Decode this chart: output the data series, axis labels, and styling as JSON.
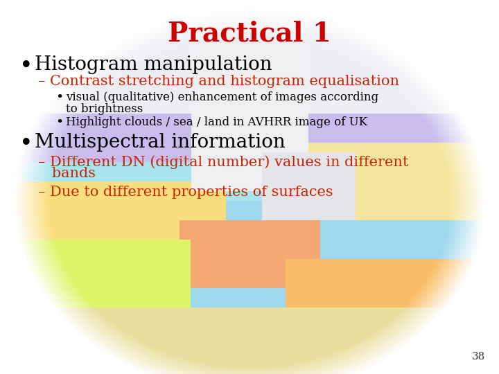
{
  "title": "Practical 1",
  "title_color": "#cc0000",
  "title_fontsize": 28,
  "background_color": "#ffffff",
  "slide_number": "38",
  "bullet1": "Histogram manipulation",
  "bullet1_color": "#000000",
  "bullet1_fontsize": 20,
  "sub_bullet1": "– Contrast stretching and histogram equalisation",
  "sub_bullet1_color": "#cc2200",
  "sub_bullet1_fontsize": 15,
  "sub_sub_bullet1_line1": "visual (qualitative) enhancement of images according",
  "sub_sub_bullet1_line2": "to brightness",
  "sub_sub_bullet_color": "#000000",
  "sub_sub_bullet_fontsize": 12,
  "sub_sub_bullet2": "Highlight clouds / sea / land in AVHRR image of UK",
  "bullet2": "Multispectral information",
  "bullet2_color": "#000000",
  "bullet2_fontsize": 20,
  "sub_bullet2_line1": "– Different DN (digital number) values in different",
  "sub_bullet2_line2": "   bands",
  "sub_bullet2_color": "#cc2200",
  "sub_bullet2_fontsize": 15,
  "sub_bullet3": "– Due to different properties of surfaces",
  "sub_bullet3_color": "#cc2200",
  "sub_bullet3_fontsize": 15
}
